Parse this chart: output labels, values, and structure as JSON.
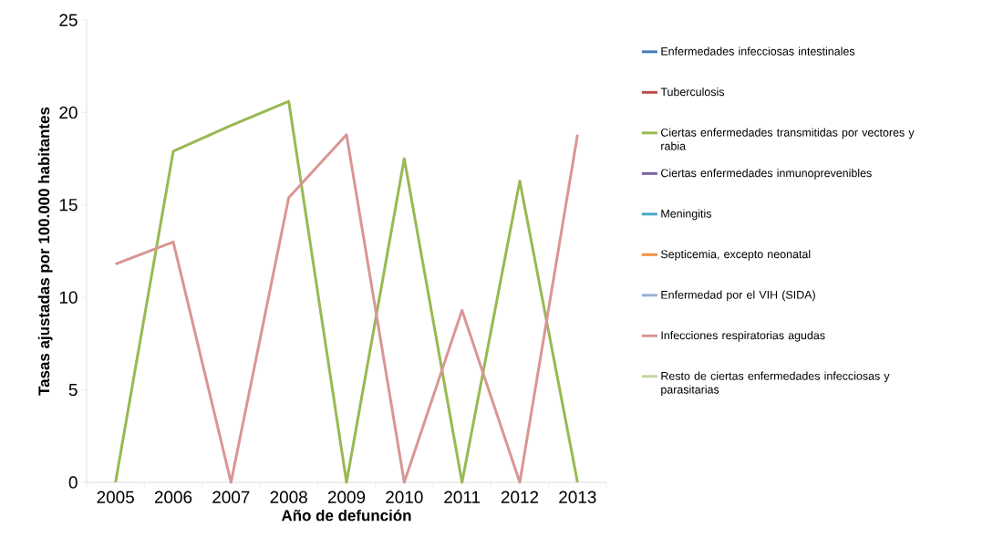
{
  "chart_data": {
    "type": "line",
    "xlabel": "Año de defunción",
    "ylabel": "Tasas ajustadas por 100.000 habitantes",
    "categories": [
      "2005",
      "2006",
      "2007",
      "2008",
      "2009",
      "2010",
      "2011",
      "2012",
      "2013"
    ],
    "series": [
      {
        "name": "Enfermedades infecciosas intestinales",
        "color": "#4a7ebb",
        "values": [
          null,
          null,
          null,
          null,
          null,
          null,
          null,
          null,
          null
        ]
      },
      {
        "name": "Tuberculosis",
        "color": "#be4b48",
        "values": [
          null,
          null,
          null,
          null,
          null,
          null,
          null,
          null,
          null
        ]
      },
      {
        "name": "Ciertas enfermedades transmitidas por vectores y rabia",
        "color": "#98b954",
        "values": [
          0,
          17.9,
          19.3,
          20.6,
          0,
          17.5,
          0,
          16.3,
          0
        ]
      },
      {
        "name": "Ciertas enfermedades inmunoprevenibles",
        "color": "#7d60a0",
        "values": [
          null,
          null,
          null,
          null,
          null,
          null,
          null,
          null,
          null
        ]
      },
      {
        "name": "Meningitis",
        "color": "#46aac5",
        "values": [
          null,
          null,
          null,
          null,
          null,
          null,
          null,
          null,
          null
        ]
      },
      {
        "name": "Septicemia, excepto neonatal",
        "color": "#f69240",
        "values": [
          null,
          null,
          null,
          null,
          null,
          null,
          null,
          null,
          null
        ]
      },
      {
        "name": "Enfermedad por el VIH (SIDA)",
        "color": "#95b3d7",
        "values": [
          null,
          null,
          null,
          null,
          null,
          null,
          null,
          null,
          null
        ]
      },
      {
        "name": "Infecciones respiratorias agudas",
        "color": "#d99694",
        "values": [
          11.8,
          13.0,
          0,
          15.4,
          18.8,
          0,
          9.3,
          0,
          18.8
        ]
      },
      {
        "name": "Resto de ciertas enfermedades infecciosas y parasitarias",
        "color": "#c3d69b",
        "values": [
          null,
          null,
          null,
          null,
          null,
          null,
          null,
          null,
          null
        ]
      }
    ],
    "ylim": [
      0,
      25
    ],
    "yticks": [
      0,
      5,
      10,
      15,
      20,
      25
    ],
    "grid": false,
    "legend": "right",
    "marker": "none",
    "line_style": "solid"
  }
}
